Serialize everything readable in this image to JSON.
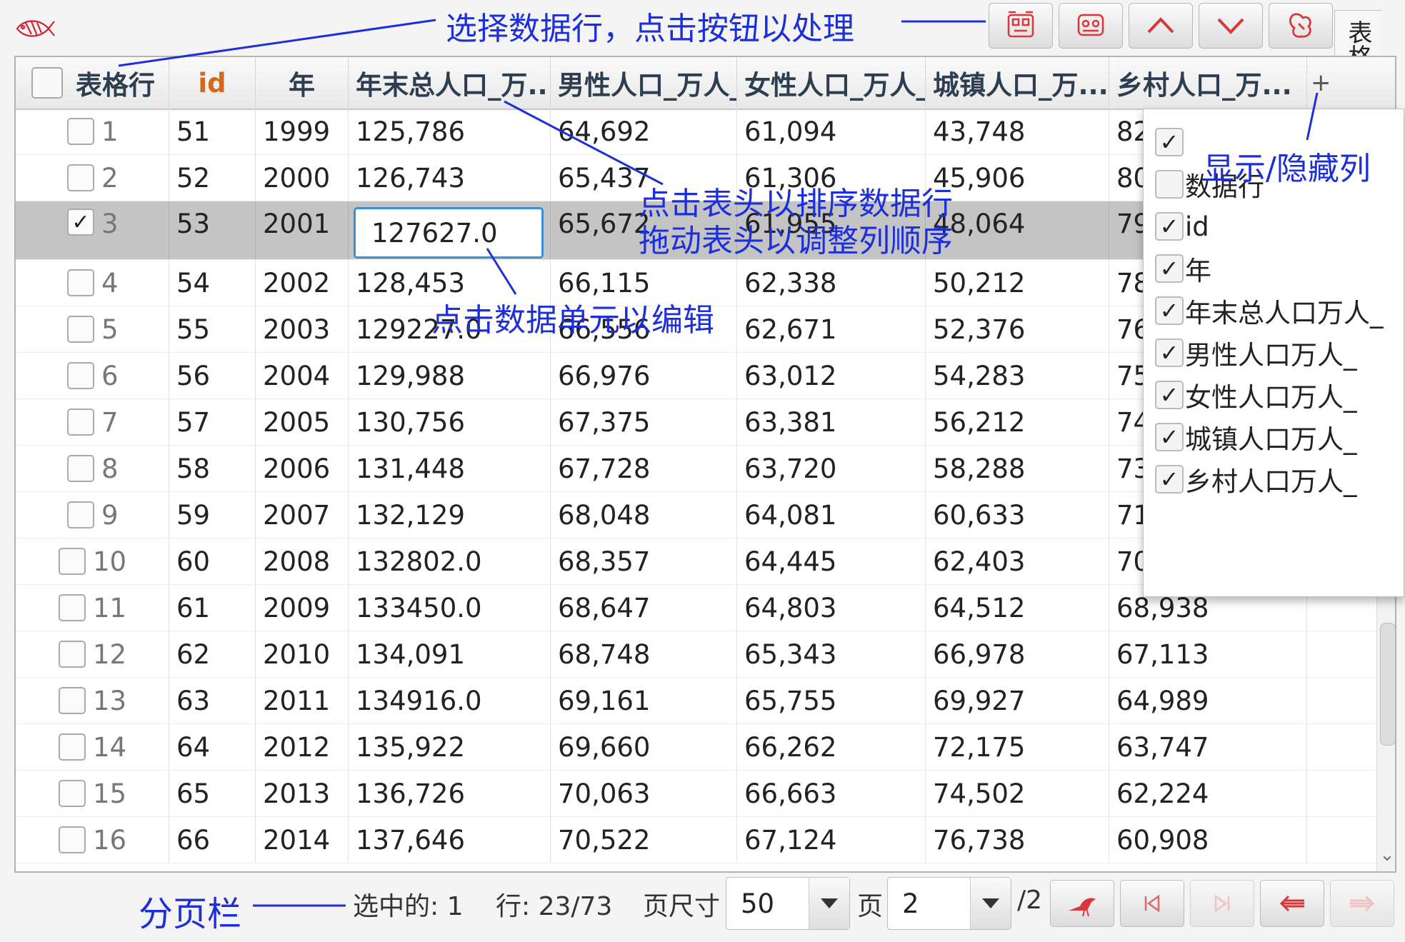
{
  "toolbar": {
    "title_instruction": "选择数据行，点击按钮以处理",
    "buttons": [
      "copy-icon",
      "edit-icon",
      "chevron-up-icon",
      "chevron-down-icon",
      "delete-icon"
    ],
    "side_tab_label": "表格"
  },
  "table": {
    "row_header_label": "表格行",
    "columns": [
      "id",
      "年",
      "年末总人口_万...",
      "男性人口_万人_",
      "女性人口_万人_",
      "城镇人口_万...",
      "乡村人口_万..."
    ],
    "add_column_symbol": "+",
    "rows": [
      {
        "n": "1",
        "checked": false,
        "cells": [
          "51",
          "1999",
          "125,786",
          "64,692",
          "61,094",
          "43,748",
          "82"
        ]
      },
      {
        "n": "2",
        "checked": false,
        "cells": [
          "52",
          "2000",
          "126,743",
          "65,437",
          "61,306",
          "45,906",
          "80"
        ]
      },
      {
        "n": "3",
        "checked": true,
        "cells": [
          "53",
          "2001",
          "",
          "65,672",
          "61,955",
          "48,064",
          "79"
        ]
      },
      {
        "n": "4",
        "checked": false,
        "cells": [
          "54",
          "2002",
          "128,453",
          "66,115",
          "62,338",
          "50,212",
          "78"
        ]
      },
      {
        "n": "5",
        "checked": false,
        "cells": [
          "55",
          "2003",
          "129227.0",
          "66,556",
          "62,671",
          "52,376",
          "76"
        ]
      },
      {
        "n": "6",
        "checked": false,
        "cells": [
          "56",
          "2004",
          "129,988",
          "66,976",
          "63,012",
          "54,283",
          "75"
        ]
      },
      {
        "n": "7",
        "checked": false,
        "cells": [
          "57",
          "2005",
          "130,756",
          "67,375",
          "63,381",
          "56,212",
          "74"
        ]
      },
      {
        "n": "8",
        "checked": false,
        "cells": [
          "58",
          "2006",
          "131,448",
          "67,728",
          "63,720",
          "58,288",
          "73"
        ]
      },
      {
        "n": "9",
        "checked": false,
        "cells": [
          "59",
          "2007",
          "132,129",
          "68,048",
          "64,081",
          "60,633",
          "71"
        ]
      },
      {
        "n": "10",
        "checked": false,
        "cells": [
          "60",
          "2008",
          "132802.0",
          "68,357",
          "64,445",
          "62,403",
          "70"
        ]
      },
      {
        "n": "11",
        "checked": false,
        "cells": [
          "61",
          "2009",
          "133450.0",
          "68,647",
          "64,803",
          "64,512",
          "68,938"
        ]
      },
      {
        "n": "12",
        "checked": false,
        "cells": [
          "62",
          "2010",
          "134,091",
          "68,748",
          "65,343",
          "66,978",
          "67,113"
        ]
      },
      {
        "n": "13",
        "checked": false,
        "cells": [
          "63",
          "2011",
          "134916.0",
          "69,161",
          "65,755",
          "69,927",
          "64,989"
        ]
      },
      {
        "n": "14",
        "checked": false,
        "cells": [
          "64",
          "2012",
          "135,922",
          "69,660",
          "66,262",
          "72,175",
          "63,747"
        ]
      },
      {
        "n": "15",
        "checked": false,
        "cells": [
          "65",
          "2013",
          "136,726",
          "70,063",
          "66,663",
          "74,502",
          "62,224"
        ]
      },
      {
        "n": "16",
        "checked": false,
        "cells": [
          "66",
          "2014",
          "137,646",
          "70,522",
          "67,124",
          "76,738",
          "60,908"
        ]
      }
    ],
    "edit_value": "127627.0"
  },
  "column_menu": {
    "items": [
      {
        "label": "",
        "checked": true
      },
      {
        "label": "数据行",
        "checked": false
      },
      {
        "label": "id",
        "checked": true
      },
      {
        "label": "年",
        "checked": true
      },
      {
        "label": "年末总人口万人_",
        "checked": true
      },
      {
        "label": "男性人口万人_",
        "checked": true
      },
      {
        "label": "女性人口万人_",
        "checked": true
      },
      {
        "label": "城镇人口万人_",
        "checked": true
      },
      {
        "label": "乡村人口万人_",
        "checked": true
      }
    ]
  },
  "pagination": {
    "selected_label": "选中的: 1",
    "rows_label": "行: 23/73",
    "page_size_label": "页尺寸",
    "page_size": "50",
    "page_label": "页",
    "page": "2",
    "total_pages": "/2"
  },
  "annotations": {
    "show_hide_columns": "显示/隐藏列",
    "sort_line1": "点击表头以排序数据行",
    "sort_line2": "拖动表头以调整列顺序",
    "edit_cell": "点击数据单元以编辑",
    "pagination": "分页栏"
  },
  "colors": {
    "annotation": "#1d2fd8",
    "id_header": "#d2691e",
    "icon_red": "#d9383a",
    "edit_border": "#3d8fd6"
  }
}
